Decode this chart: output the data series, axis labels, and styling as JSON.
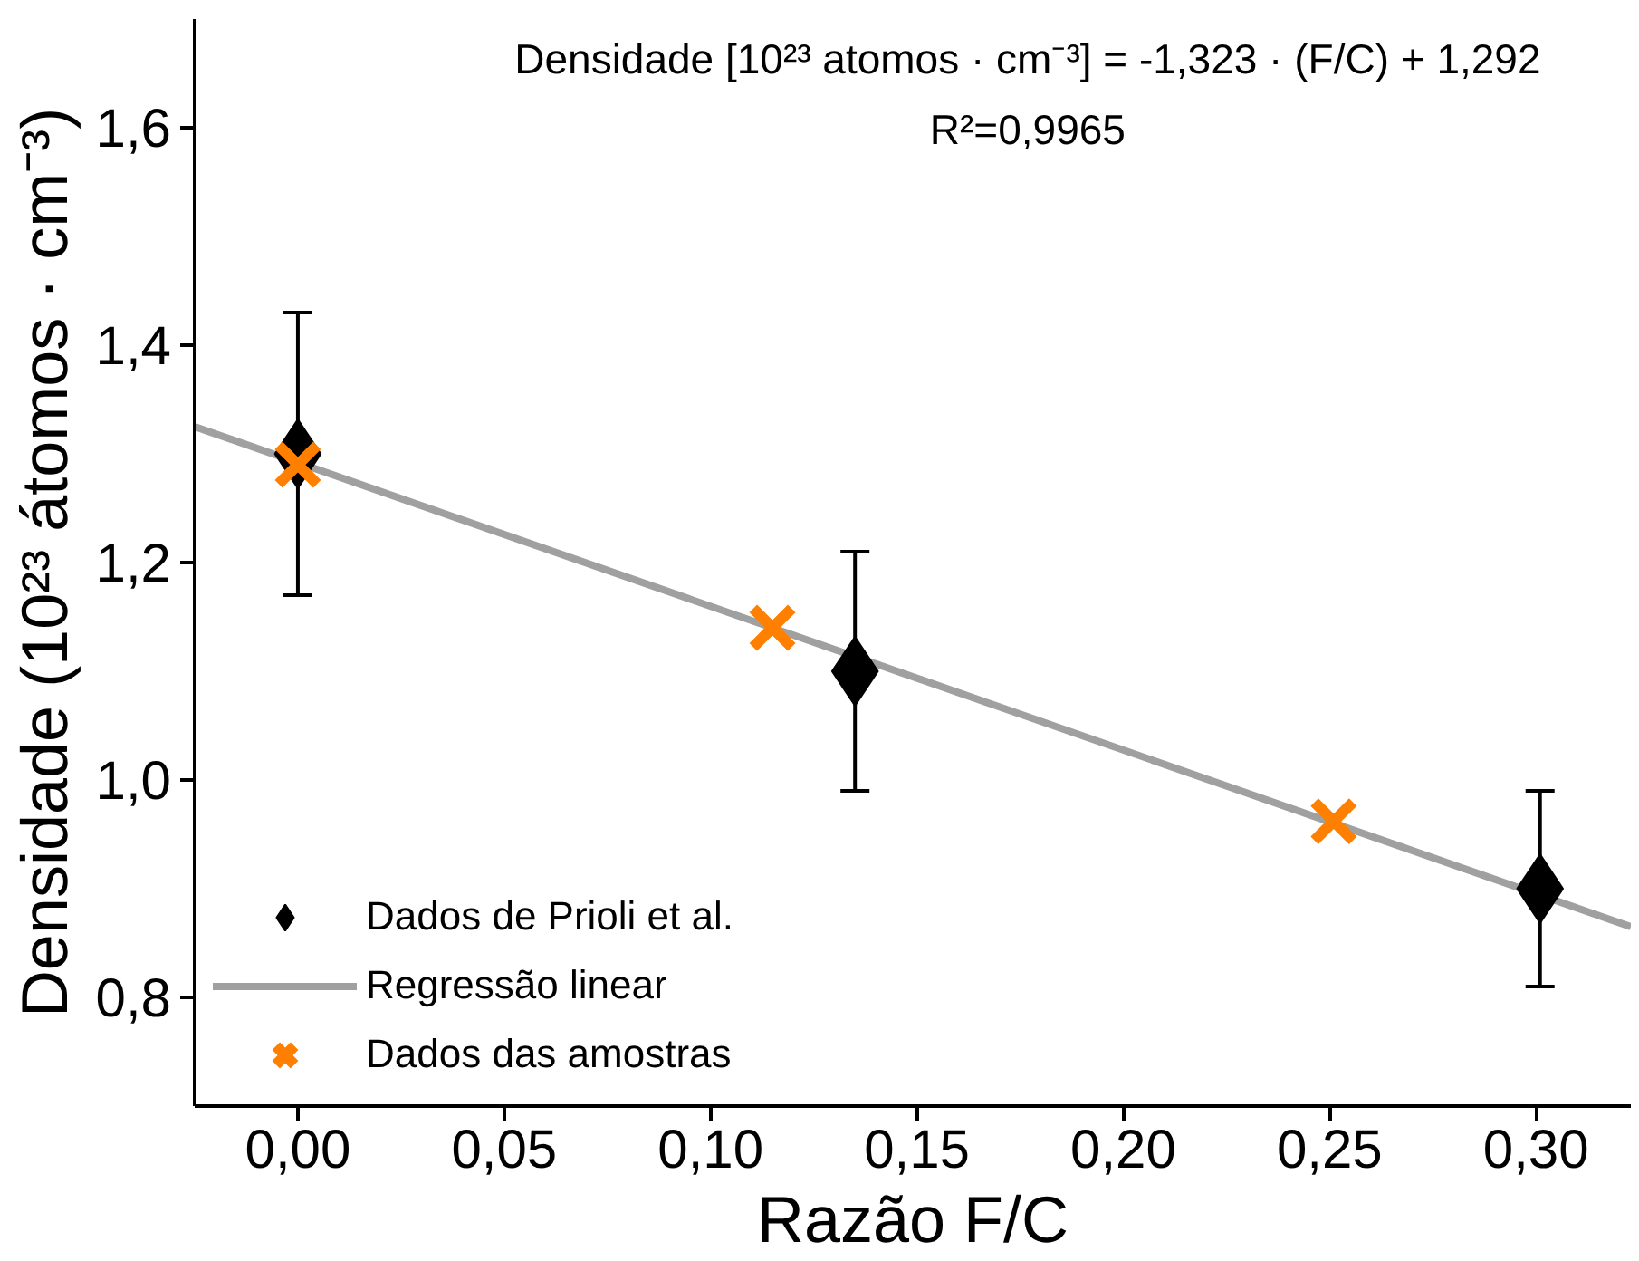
{
  "chart_data": {
    "type": "scatter",
    "xlabel": "Razão F/C",
    "ylabel": "Densidade (10²³ átomos · cm⁻³)",
    "annotations": [
      "Densidade [10²³ atomos · cm⁻³] = -1,323 · (F/C) + 1,292",
      "R²=0,9965"
    ],
    "xlim": [
      -0.025,
      0.323
    ],
    "ylim": [
      0.7,
      1.7
    ],
    "xticks": [
      {
        "value": 0,
        "label": "0,00"
      },
      {
        "value": 0.05,
        "label": "0,05"
      },
      {
        "value": 0.1,
        "label": "0,10"
      },
      {
        "value": 0.15,
        "label": "0,15"
      },
      {
        "value": 0.2,
        "label": "0,20"
      },
      {
        "value": 0.25,
        "label": "0,25"
      },
      {
        "value": 0.3,
        "label": "0,30"
      }
    ],
    "yticks": [
      {
        "value": 0.8,
        "label": "0,8"
      },
      {
        "value": 1.0,
        "label": "1,0"
      },
      {
        "value": 1.2,
        "label": "1,2"
      },
      {
        "value": 1.4,
        "label": "1,4"
      },
      {
        "value": 1.6,
        "label": "1,6"
      }
    ],
    "grid": false,
    "legend": "bottom left",
    "series": [
      {
        "name": "Dados de Prioli et al.",
        "marker": "diamond",
        "color": "#000000",
        "x": [
          0,
          0.135,
          0.301
        ],
        "values": [
          1.3,
          1.1,
          0.9
        ],
        "errors": [
          0.13,
          0.11,
          0.09
        ]
      },
      {
        "name": "Regressão linear",
        "type": "line",
        "line_style": "solid",
        "color": "#a0a0a0",
        "x": [
          -0.025,
          0.323
        ],
        "values": [
          1.325,
          0.865
        ]
      },
      {
        "name": "Dados das amostras",
        "marker": "cross",
        "color": "#ff8000",
        "x": [
          0,
          0.115,
          0.251
        ],
        "values": [
          1.29,
          1.14,
          0.962
        ]
      }
    ]
  }
}
